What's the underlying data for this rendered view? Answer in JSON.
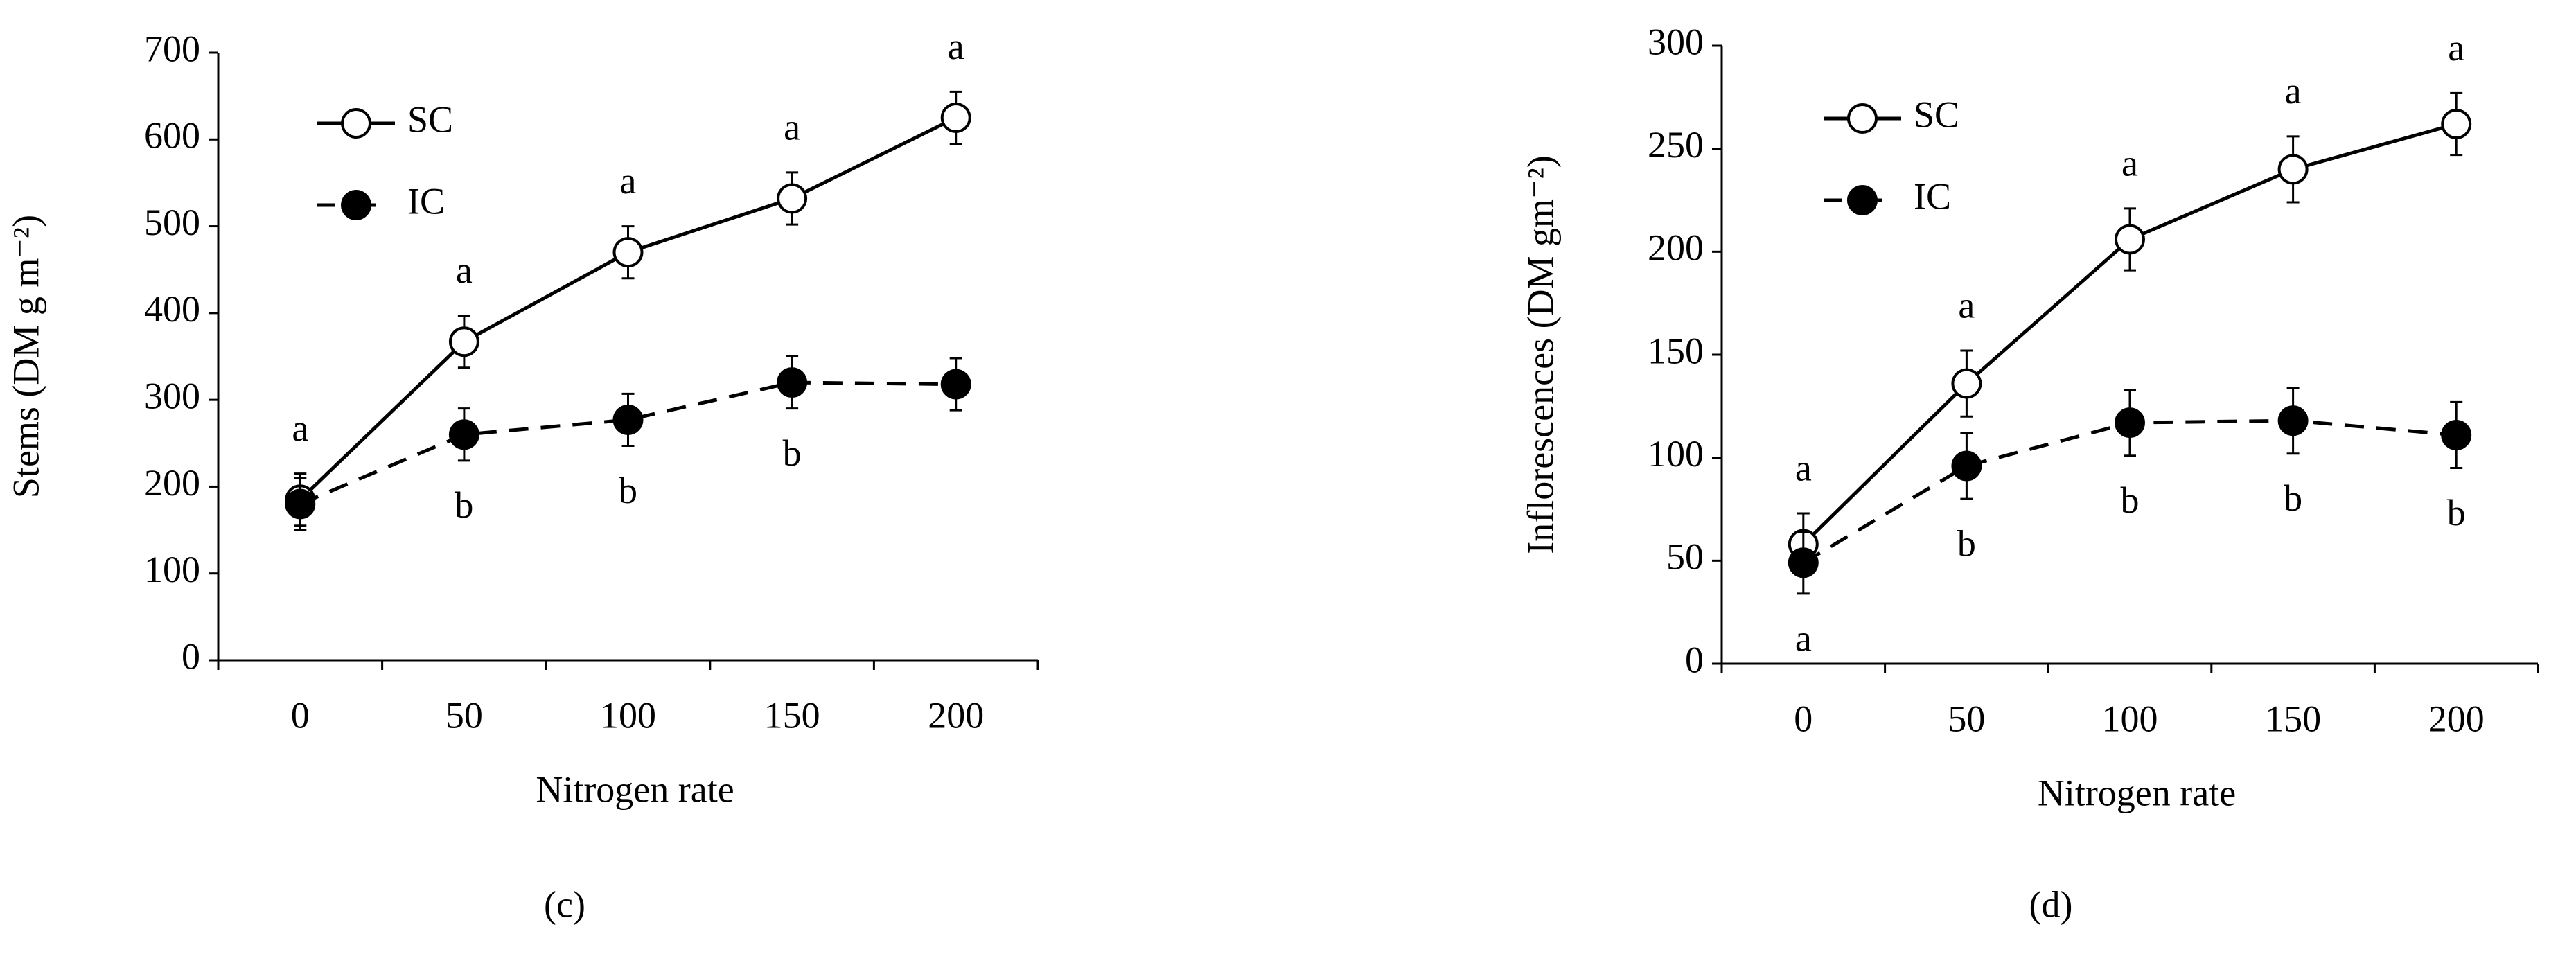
{
  "chart_data": [
    {
      "type": "line",
      "label": "(c)",
      "y_label": "Stems (DM g m⁻²)",
      "x_label": "Nitrogen rate",
      "categories": [
        "0",
        "50",
        "100",
        "150",
        "200"
      ],
      "ylim": [
        0,
        700
      ],
      "yticks": [
        0,
        100,
        200,
        300,
        400,
        500,
        600,
        700
      ],
      "legend": "upper left",
      "series": [
        {
          "name": "SC",
          "color": "#000000",
          "marker_fill": "#ffffff",
          "line_style": "solid",
          "values": [
            185,
            367,
            470,
            532,
            625
          ],
          "errors": [
            30,
            30,
            30,
            30,
            30
          ],
          "letters": [
            "a",
            "a",
            "a",
            "a",
            "a"
          ]
        },
        {
          "name": "IC",
          "color": "#000000",
          "marker_fill": "#000000",
          "line_style": "dashed",
          "values": [
            180,
            260,
            277,
            320,
            318
          ],
          "errors": [
            30,
            30,
            30,
            30,
            30
          ],
          "letters": [
            null,
            "b",
            "b",
            "b",
            null
          ]
        }
      ]
    },
    {
      "type": "line",
      "label": "(d)",
      "y_label": "Inflorescences (DM gm⁻²)",
      "x_label": "Nitrogen rate",
      "categories": [
        "0",
        "50",
        "100",
        "150",
        "200"
      ],
      "ylim": [
        0,
        300
      ],
      "yticks": [
        0,
        50,
        100,
        150,
        200,
        250,
        300
      ],
      "legend": "upper left",
      "series": [
        {
          "name": "SC",
          "color": "#000000",
          "marker_fill": "#ffffff",
          "line_style": "solid",
          "values": [
            58,
            136,
            206,
            240,
            262
          ],
          "errors": [
            15,
            16,
            15,
            16,
            15
          ],
          "letters": [
            "a",
            "a",
            "a",
            "a",
            "a"
          ]
        },
        {
          "name": "IC",
          "color": "#000000",
          "marker_fill": "#000000",
          "line_style": "dashed",
          "values": [
            49,
            96,
            117,
            118,
            111
          ],
          "errors": [
            15,
            16,
            16,
            16,
            16
          ],
          "letters": [
            "a",
            "b",
            "b",
            "b",
            "b"
          ]
        }
      ]
    }
  ]
}
